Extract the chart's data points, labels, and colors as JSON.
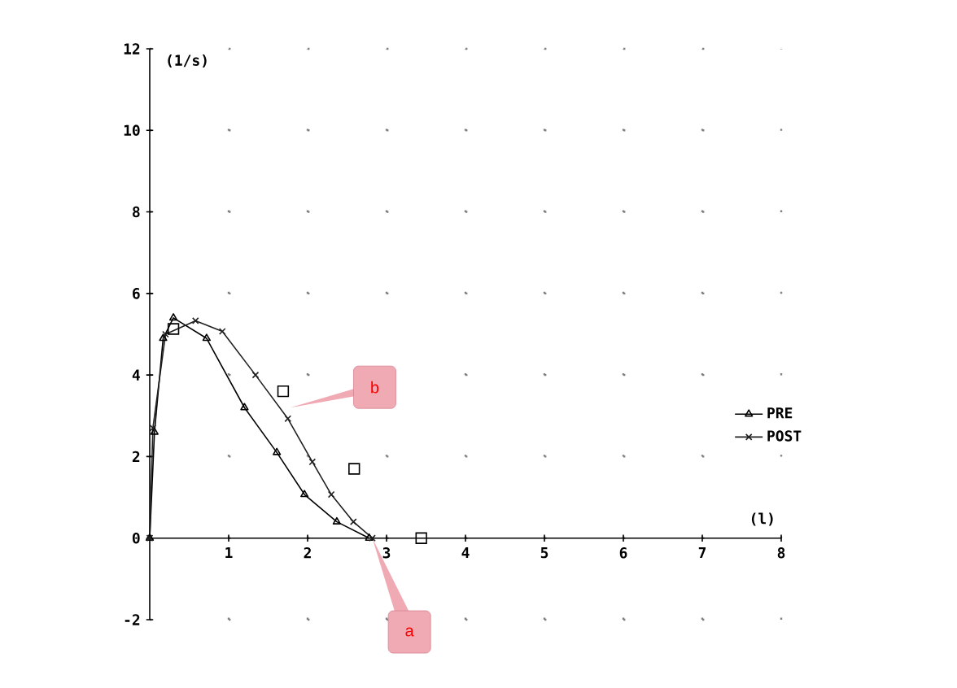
{
  "chart_data": {
    "type": "line",
    "xlabel": "(l)",
    "ylabel": "(1/s)",
    "xlim": [
      0,
      8
    ],
    "ylim": [
      -2,
      12
    ],
    "xticks": [
      1,
      2,
      3,
      4,
      5,
      6,
      7,
      8
    ],
    "yticks": [
      -2,
      0,
      2,
      4,
      6,
      8,
      10,
      12
    ],
    "grid": true,
    "legend": "right",
    "series": [
      {
        "name": "PRE",
        "color": "#000000",
        "marker": "triangle",
        "x": [
          0,
          0.06,
          0.17,
          0.3,
          0.72,
          1.2,
          1.61,
          1.96,
          2.37,
          2.78
        ],
        "values": [
          0,
          2.6,
          4.9,
          5.4,
          4.9,
          3.2,
          2.1,
          1.07,
          0.4,
          0
        ]
      },
      {
        "name": "POST",
        "color": "#202020",
        "marker": "cross",
        "x": [
          0,
          0.04,
          0.2,
          0.58,
          0.92,
          1.34,
          1.75,
          2.06,
          2.3,
          2.58,
          2.82
        ],
        "values": [
          0,
          2.7,
          5.0,
          5.33,
          5.07,
          4.0,
          2.93,
          1.87,
          1.07,
          0.4,
          0
        ]
      },
      {
        "type": "scatter",
        "color": "#000000",
        "marker": "square",
        "x": [
          0.3,
          1.69,
          2.59,
          3.44
        ],
        "values": [
          5.13,
          3.6,
          1.7,
          0
        ]
      }
    ],
    "annotations": [
      {
        "text": "b",
        "x": 1.78,
        "y": 3.2
      },
      {
        "text": "a",
        "x": 2.82,
        "y": 0
      }
    ]
  }
}
